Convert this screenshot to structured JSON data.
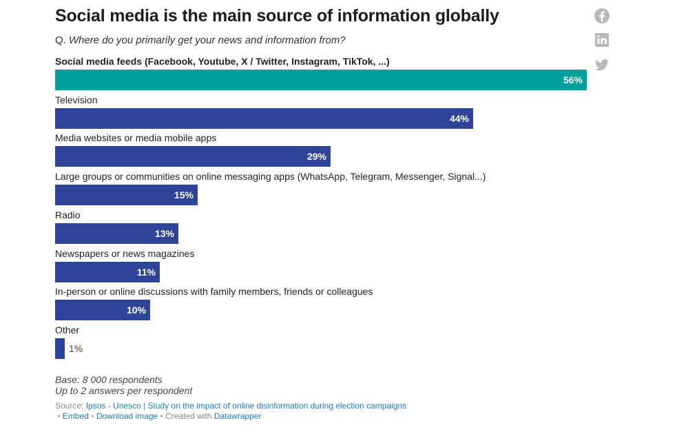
{
  "title": "Social media is the main source of information globally",
  "question": {
    "prefix": "Q.",
    "text": "Where do you primarily get your news and information from?"
  },
  "share_icons": [
    "facebook-icon",
    "linkedin-icon",
    "twitter-icon"
  ],
  "colors": {
    "highlight": "#00a19b",
    "bar": "#2e4497",
    "value_inside": "#ffffff",
    "value_outside": "#444444",
    "link": "#1a7bc4"
  },
  "chart_data": {
    "type": "bar",
    "orientation": "horizontal",
    "title": "Social media is the main source of information globally",
    "unit": "%",
    "xlim": [
      0,
      58
    ],
    "categories": [
      "Social media feeds (Facebook, Youtube, X / Twitter, Instagram, TikTok, ...)",
      "Television",
      "Media websites or media mobile apps",
      "Large groups or communities on online messaging apps (WhatsApp, Telegram, Messenger, Signal...)",
      "Radio",
      "Newspapers or news magazines",
      "In-person or online discussions with family members, friends or colleagues",
      "Other"
    ],
    "values": [
      56,
      44,
      29,
      15,
      13,
      11,
      10,
      1
    ],
    "highlighted_index": 0
  },
  "notes": {
    "base": "Base: 8 000 respondents",
    "answers": "Up to 2 answers per respondent"
  },
  "footer": {
    "source_label": "Source:",
    "source_link": "Ipsos - Unesco | Study on the impact of online disinformation during election campaigns",
    "separator": "•",
    "embed": "Embed",
    "download": "Download image",
    "created_with": "Created with",
    "datawrapper": "Datawrapper"
  }
}
